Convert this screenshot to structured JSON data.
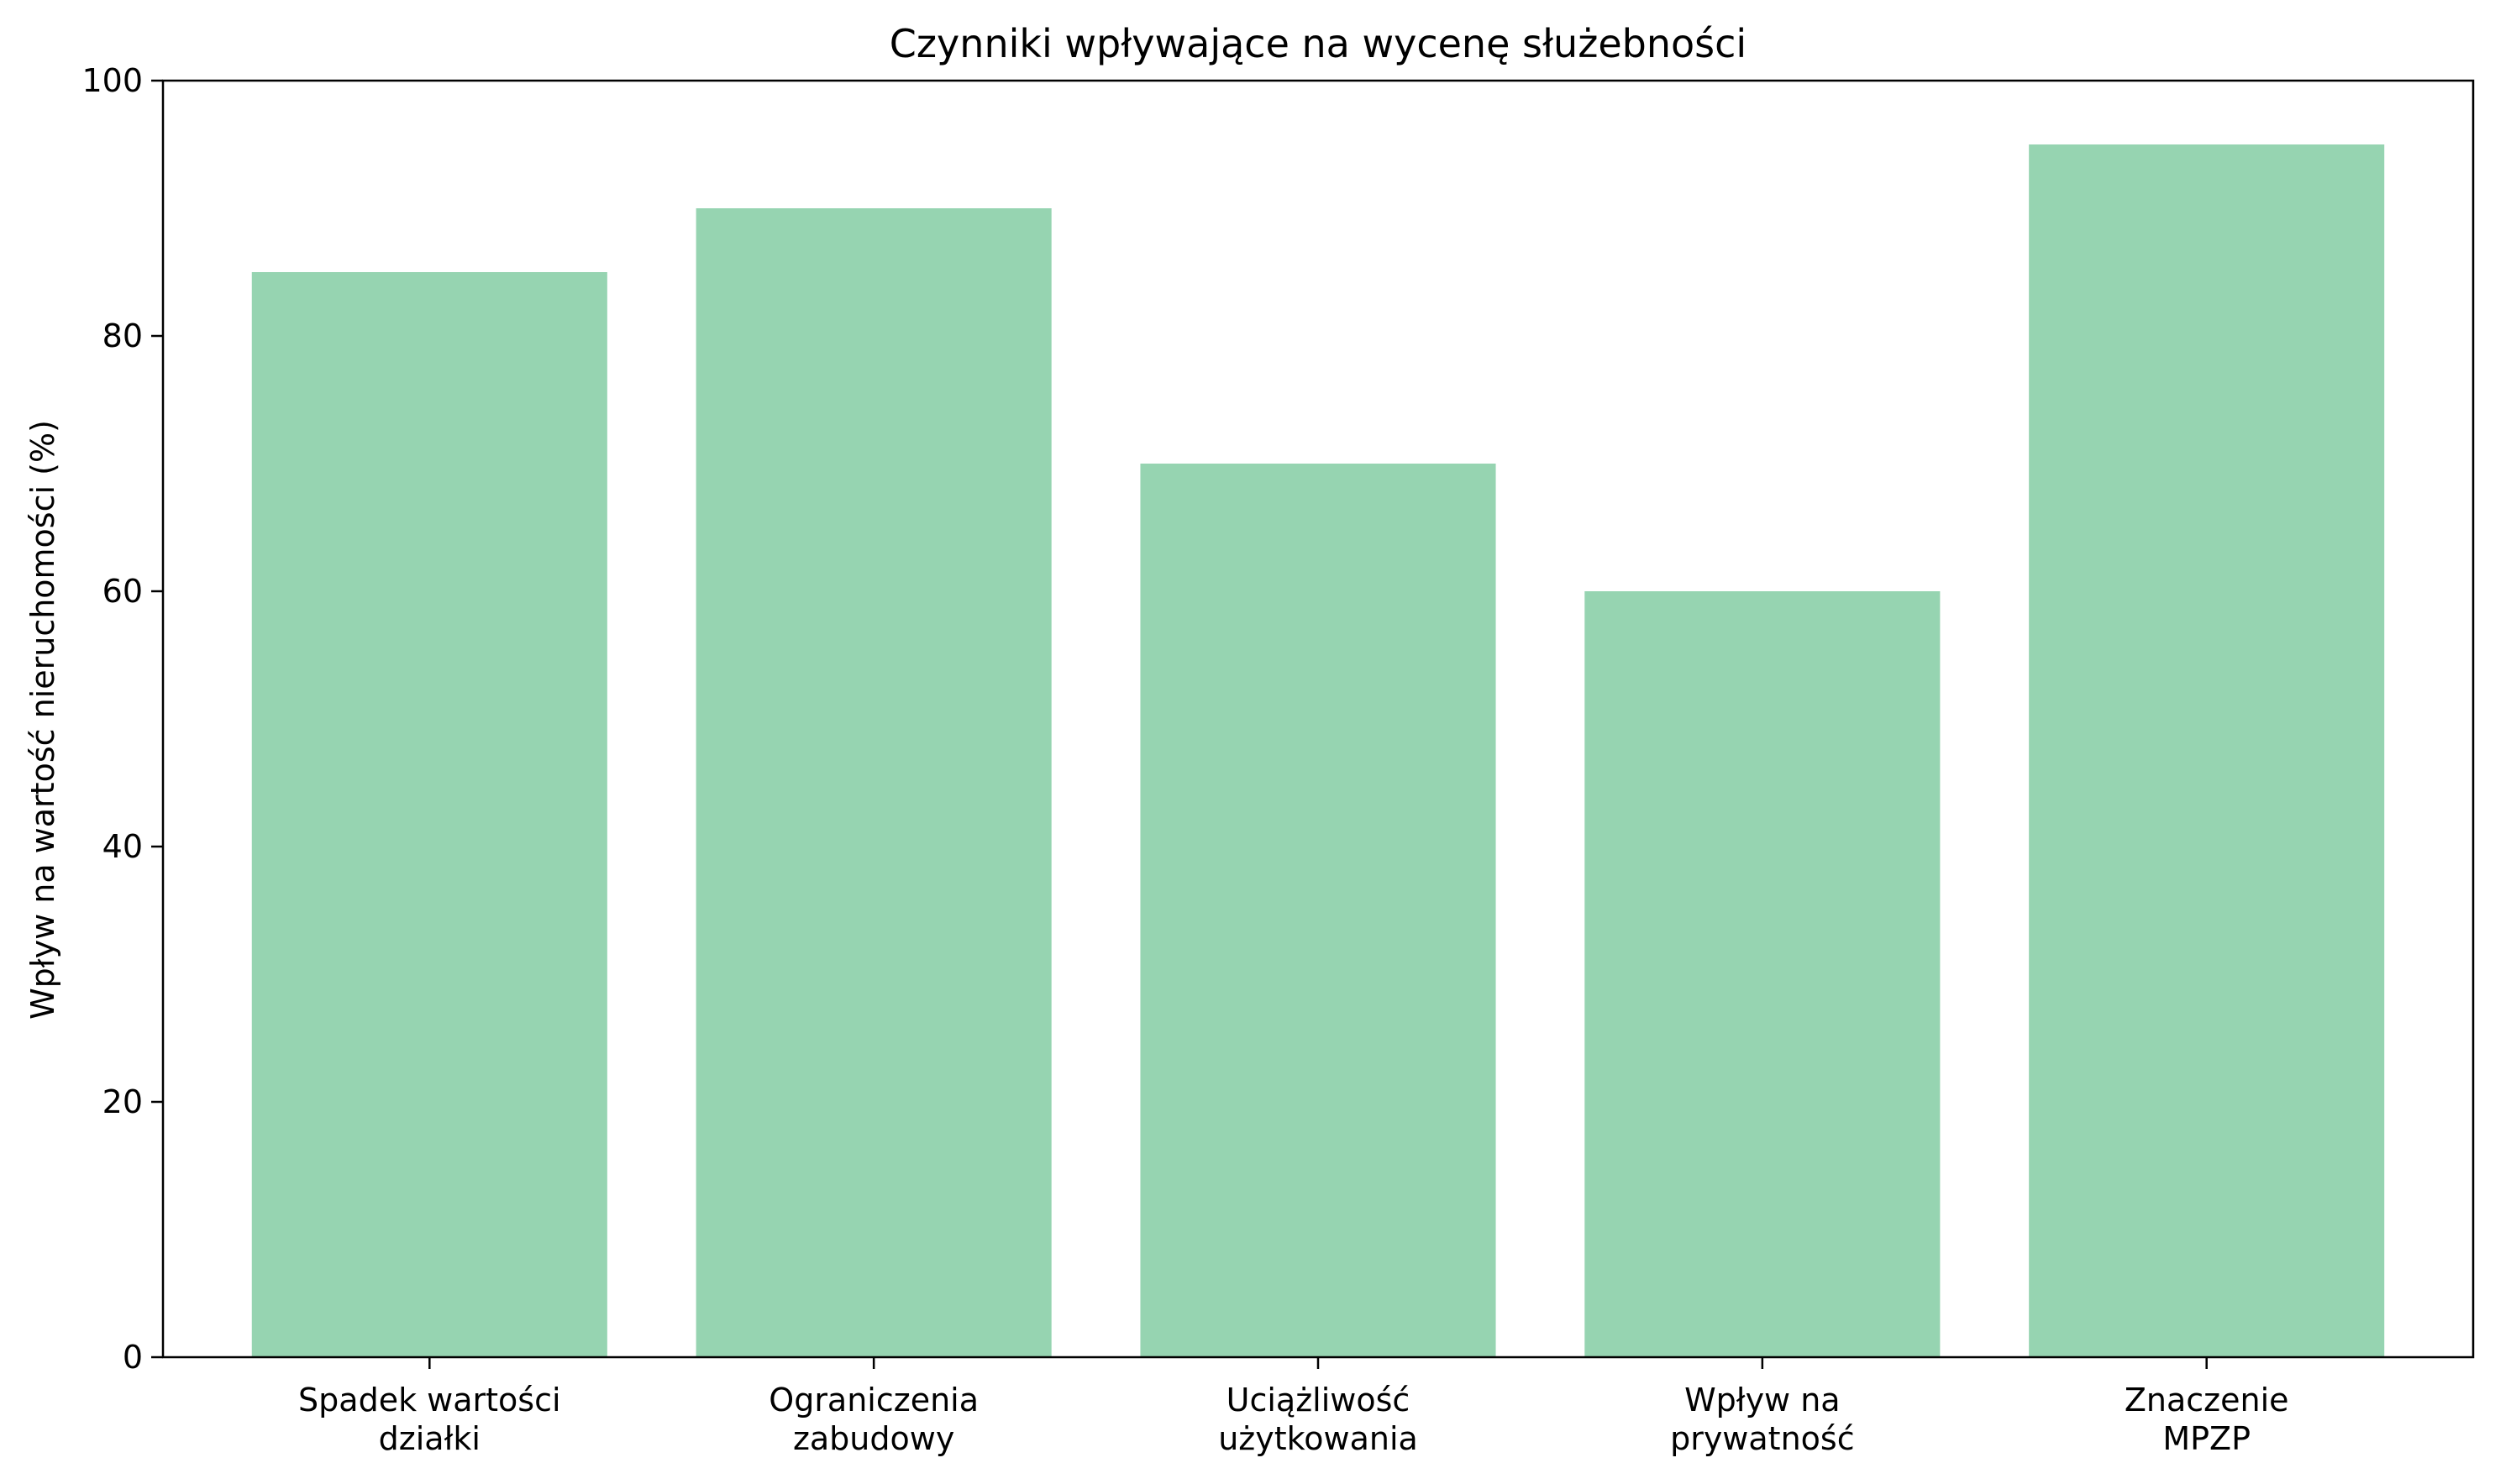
{
  "chart_data": {
    "type": "bar",
    "title": "Czynniki wpływające na wycenę służebności",
    "xlabel": "",
    "ylabel": "Wpływ na wartość nieruchomości (%)",
    "categories": [
      [
        "Spadek wartości",
        "działki"
      ],
      [
        "Ograniczenia",
        "zabudowy"
      ],
      [
        "Uciążliwość",
        "użytkowania"
      ],
      [
        "Wpływ na",
        "prywatność"
      ],
      [
        "Znaczenie",
        "MPZP"
      ]
    ],
    "values": [
      85,
      90,
      70,
      60,
      95
    ],
    "ylim": [
      0,
      100
    ],
    "yticks": [
      "0",
      "20",
      "40",
      "60",
      "80",
      "100"
    ],
    "grid": false,
    "bar_color": "#96d4b1"
  }
}
